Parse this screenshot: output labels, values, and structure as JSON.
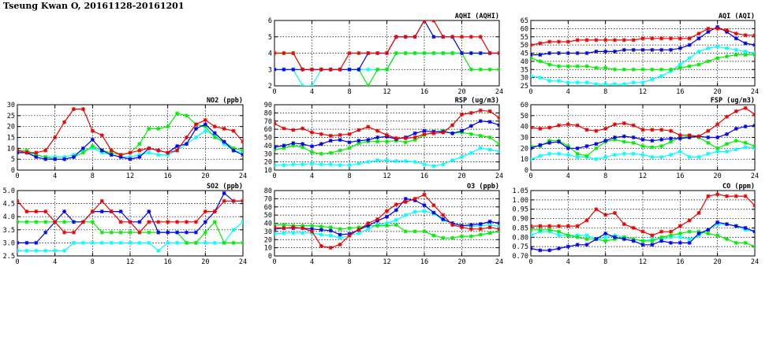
{
  "page_title": "Tseung Kwan O, 20161128-20161201",
  "series_colors": [
    "#00ffff",
    "#00ee00",
    "#0000ee",
    "#ee0000"
  ],
  "chart_data": [
    {
      "id": "aqhi",
      "type": "line",
      "title": "AQHI (AQHI)",
      "xlim": [
        0,
        24
      ],
      "xticks": [
        0,
        4,
        8,
        12,
        16,
        20,
        24
      ],
      "ylim": [
        2,
        6
      ],
      "yticks": [
        2,
        3,
        4,
        5,
        6
      ],
      "grid": true,
      "series": [
        {
          "color": "#00ffff",
          "values": [
            3,
            3,
            3,
            2,
            2,
            3,
            3,
            3,
            3,
            3,
            3,
            3,
            3,
            4,
            4,
            4,
            4,
            4,
            4,
            4,
            4,
            4,
            4,
            4,
            4
          ]
        },
        {
          "color": "#00ee00",
          "values": [
            4,
            4,
            4,
            3,
            3,
            3,
            3,
            3,
            3,
            3,
            2,
            3,
            3,
            4,
            4,
            4,
            4,
            4,
            4,
            4,
            4,
            3,
            3,
            3,
            3
          ]
        },
        {
          "color": "#0000ee",
          "values": [
            3,
            3,
            3,
            3,
            3,
            3,
            3,
            3,
            3,
            3,
            4,
            4,
            4,
            5,
            5,
            5,
            6,
            5,
            5,
            5,
            4,
            4,
            4,
            4,
            4
          ]
        },
        {
          "color": "#ee0000",
          "values": [
            4,
            4,
            4,
            3,
            3,
            3,
            3,
            3,
            4,
            4,
            4,
            4,
            4,
            5,
            5,
            5,
            6,
            6,
            5,
            5,
            5,
            5,
            5,
            4,
            4
          ]
        }
      ]
    },
    {
      "id": "aqi",
      "type": "line",
      "title": "AQI (AQI)",
      "xlim": [
        0,
        24
      ],
      "xticks": [
        0,
        4,
        8,
        12,
        16,
        20,
        24
      ],
      "ylim": [
        25,
        65
      ],
      "yticks": [
        25,
        30,
        35,
        40,
        45,
        50,
        55,
        60,
        65
      ],
      "grid": true,
      "series": [
        {
          "color": "#00ffff",
          "values": [
            31,
            30,
            28,
            28,
            27,
            27,
            27,
            26,
            26,
            26,
            26,
            27,
            27,
            29,
            31,
            34,
            38,
            42,
            46,
            48,
            49,
            48,
            47,
            46,
            45
          ]
        },
        {
          "color": "#00ee00",
          "values": [
            42,
            40,
            38,
            37,
            37,
            37,
            37,
            36,
            36,
            35,
            35,
            35,
            35,
            35,
            35,
            35,
            36,
            37,
            38,
            40,
            42,
            43,
            44,
            44,
            44
          ]
        },
        {
          "color": "#0000ee",
          "values": [
            44,
            44,
            45,
            45,
            45,
            45,
            45,
            46,
            46,
            46,
            47,
            47,
            47,
            47,
            47,
            47,
            48,
            50,
            54,
            58,
            61,
            58,
            54,
            51,
            50
          ]
        },
        {
          "color": "#ee0000",
          "values": [
            50,
            51,
            52,
            52,
            52,
            53,
            53,
            53,
            53,
            53,
            53,
            53,
            54,
            54,
            54,
            54,
            54,
            54,
            57,
            60,
            60,
            59,
            57,
            56,
            56
          ]
        }
      ]
    },
    {
      "id": "no2",
      "type": "line",
      "title": "NO2 (ppb)",
      "xlim": [
        0,
        24
      ],
      "xticks": [
        0,
        4,
        8,
        12,
        16,
        20,
        24
      ],
      "ylim": [
        0,
        30
      ],
      "yticks": [
        0,
        5,
        10,
        15,
        20,
        25,
        30
      ],
      "grid": true,
      "series": [
        {
          "color": "#00ffff",
          "values": [
            8,
            8,
            7,
            6,
            6,
            6,
            7,
            9,
            10,
            8,
            7,
            6,
            6,
            7,
            8,
            7,
            7,
            9,
            12,
            15,
            18,
            16,
            12,
            9,
            8
          ]
        },
        {
          "color": "#00ee00",
          "values": [
            9,
            9,
            7,
            6,
            5,
            5,
            6,
            8,
            11,
            9,
            8,
            7,
            8,
            12,
            19,
            19,
            20,
            26,
            25,
            21,
            20,
            15,
            13,
            10,
            9
          ]
        },
        {
          "color": "#0000ee",
          "values": [
            8,
            8,
            6,
            5,
            5,
            5,
            6,
            10,
            14,
            9,
            7,
            6,
            5,
            6,
            10,
            9,
            8,
            11,
            12,
            19,
            21,
            17,
            13,
            9,
            7
          ]
        },
        {
          "color": "#ee0000",
          "values": [
            9,
            8,
            8,
            9,
            15,
            22,
            28,
            28,
            18,
            16,
            9,
            7,
            8,
            9,
            10,
            9,
            8,
            9,
            15,
            21,
            23,
            20,
            19,
            18,
            13
          ]
        }
      ]
    },
    {
      "id": "rsp",
      "type": "line",
      "title": "RSP (ug/m3)",
      "xlim": [
        0,
        24
      ],
      "xticks": [
        0,
        4,
        8,
        12,
        16,
        20,
        24
      ],
      "ylim": [
        10,
        90
      ],
      "yticks": [
        10,
        20,
        30,
        40,
        50,
        60,
        70,
        80,
        90
      ],
      "grid": true,
      "series": [
        {
          "color": "#00ffff",
          "values": [
            16,
            16,
            17,
            17,
            18,
            17,
            17,
            16,
            16,
            18,
            20,
            22,
            22,
            21,
            21,
            20,
            17,
            15,
            17,
            22,
            26,
            31,
            37,
            35,
            33
          ]
        },
        {
          "color": "#00ee00",
          "values": [
            35,
            37,
            40,
            38,
            32,
            30,
            31,
            34,
            37,
            43,
            45,
            45,
            45,
            46,
            44,
            47,
            53,
            57,
            58,
            55,
            56,
            54,
            52,
            50,
            42
          ]
        },
        {
          "color": "#0000ee",
          "values": [
            38,
            40,
            43,
            42,
            39,
            42,
            46,
            47,
            44,
            46,
            47,
            50,
            51,
            48,
            50,
            55,
            58,
            57,
            57,
            55,
            58,
            64,
            70,
            69,
            65
          ]
        },
        {
          "color": "#ee0000",
          "values": [
            67,
            61,
            59,
            61,
            56,
            54,
            52,
            53,
            54,
            59,
            63,
            58,
            53,
            49,
            49,
            50,
            54,
            55,
            56,
            65,
            78,
            80,
            83,
            82,
            74
          ]
        }
      ]
    },
    {
      "id": "fsp",
      "type": "line",
      "title": "FSP (ug/m3)",
      "xlim": [
        0,
        24
      ],
      "xticks": [
        0,
        4,
        8,
        12,
        16,
        20,
        24
      ],
      "ylim": [
        0,
        60
      ],
      "yticks": [
        0,
        10,
        20,
        30,
        40,
        50,
        60
      ],
      "grid": true,
      "series": [
        {
          "color": "#00ffff",
          "values": [
            10,
            13,
            15,
            15,
            14,
            12,
            12,
            10,
            12,
            14,
            15,
            15,
            14,
            12,
            12,
            14,
            17,
            12,
            12,
            15,
            17,
            17,
            19,
            21,
            20
          ]
        },
        {
          "color": "#00ee00",
          "values": [
            22,
            22,
            27,
            27,
            22,
            15,
            13,
            20,
            26,
            28,
            26,
            25,
            22,
            21,
            22,
            26,
            30,
            31,
            30,
            25,
            20,
            24,
            27,
            25,
            22
          ]
        },
        {
          "color": "#0000ee",
          "values": [
            20,
            23,
            25,
            26,
            20,
            20,
            22,
            24,
            27,
            30,
            31,
            30,
            28,
            27,
            28,
            29,
            29,
            30,
            31,
            30,
            30,
            33,
            38,
            40,
            41
          ]
        },
        {
          "color": "#ee0000",
          "values": [
            39,
            38,
            39,
            41,
            42,
            41,
            37,
            36,
            38,
            42,
            43,
            41,
            37,
            37,
            37,
            36,
            32,
            32,
            31,
            36,
            42,
            49,
            54,
            57,
            51
          ]
        }
      ]
    },
    {
      "id": "so2",
      "type": "line",
      "title": "SO2 (ppb)",
      "xlim": [
        0,
        24
      ],
      "xticks": [
        0,
        4,
        8,
        12,
        16,
        20,
        24
      ],
      "ylim": [
        2.5,
        5
      ],
      "yticks": [
        2.5,
        3.0,
        3.5,
        4.0,
        4.5,
        5.0
      ],
      "grid": true,
      "series": [
        {
          "color": "#00ffff",
          "values": [
            2.7,
            2.7,
            2.7,
            2.7,
            2.7,
            2.7,
            3.0,
            3.0,
            3.0,
            3.0,
            3.0,
            3.0,
            3.0,
            3.0,
            3.0,
            2.7,
            3.0,
            3.0,
            3.0,
            3.0,
            3.0,
            3.0,
            3.0,
            3.5,
            3.8
          ]
        },
        {
          "color": "#00ee00",
          "values": [
            3.8,
            3.8,
            3.8,
            3.8,
            3.8,
            3.8,
            3.8,
            3.8,
            3.8,
            3.4,
            3.4,
            3.4,
            3.4,
            3.4,
            3.4,
            3.4,
            3.4,
            3.4,
            3.0,
            3.0,
            3.4,
            3.8,
            3.0,
            3.0,
            3.0
          ]
        },
        {
          "color": "#0000ee",
          "values": [
            3.0,
            3.0,
            3.0,
            3.4,
            3.8,
            4.2,
            3.8,
            3.8,
            4.2,
            4.2,
            4.2,
            4.2,
            3.8,
            3.8,
            4.2,
            3.4,
            3.4,
            3.4,
            3.4,
            3.4,
            3.8,
            4.2,
            4.9,
            4.6,
            4.6
          ]
        },
        {
          "color": "#ee0000",
          "values": [
            4.6,
            4.2,
            4.2,
            4.2,
            3.8,
            3.4,
            3.4,
            3.8,
            4.2,
            4.6,
            4.2,
            3.8,
            3.8,
            3.4,
            3.8,
            3.8,
            3.8,
            3.8,
            3.8,
            3.8,
            4.2,
            4.2,
            4.6,
            4.6,
            4.6
          ]
        }
      ]
    },
    {
      "id": "o3",
      "type": "line",
      "title": "O3 (ppb)",
      "xlim": [
        0,
        24
      ],
      "xticks": [
        0,
        4,
        8,
        12,
        16,
        20,
        24
      ],
      "ylim": [
        0,
        80
      ],
      "yticks": [
        0,
        10,
        20,
        30,
        40,
        50,
        60,
        70,
        80
      ],
      "grid": true,
      "series": [
        {
          "color": "#00ffff",
          "values": [
            27,
            28,
            28,
            28,
            28,
            26,
            25,
            22,
            25,
            28,
            33,
            38,
            40,
            44,
            50,
            54,
            55,
            52,
            44,
            40,
            37,
            36,
            37,
            38,
            36
          ]
        },
        {
          "color": "#00ee00",
          "values": [
            38,
            38,
            37,
            37,
            37,
            36,
            35,
            33,
            34,
            35,
            37,
            37,
            37,
            38,
            30,
            30,
            30,
            25,
            22,
            22,
            24,
            24,
            26,
            28,
            30
          ]
        },
        {
          "color": "#0000ee",
          "values": [
            33,
            34,
            34,
            34,
            33,
            32,
            31,
            26,
            27,
            32,
            37,
            43,
            48,
            56,
            70,
            68,
            62,
            53,
            45,
            40,
            37,
            38,
            39,
            42,
            40
          ]
        },
        {
          "color": "#ee0000",
          "values": [
            35,
            34,
            35,
            34,
            30,
            12,
            10,
            14,
            25,
            32,
            40,
            45,
            55,
            63,
            66,
            70,
            75,
            62,
            50,
            38,
            35,
            33,
            33,
            35,
            33
          ]
        }
      ]
    },
    {
      "id": "co",
      "type": "line",
      "title": "CO (ppm)",
      "xlim": [
        0,
        24
      ],
      "xticks": [
        0,
        4,
        8,
        12,
        16,
        20,
        24
      ],
      "ylim": [
        0.7,
        1.05
      ],
      "yticks": [
        0.7,
        0.75,
        0.8,
        0.85,
        0.9,
        0.95,
        1.0,
        1.05
      ],
      "grid": true,
      "series": [
        {
          "color": "#00ffff",
          "values": [
            0.81,
            0.83,
            0.83,
            0.81,
            0.81,
            0.81,
            0.81,
            0.79,
            0.8,
            0.81,
            0.8,
            0.79,
            0.78,
            0.79,
            0.79,
            0.8,
            0.8,
            0.79,
            0.81,
            0.84,
            0.87,
            0.87,
            0.86,
            0.84,
            0.83
          ]
        },
        {
          "color": "#00ee00",
          "values": [
            0.84,
            0.84,
            0.84,
            0.83,
            0.81,
            0.8,
            0.79,
            0.79,
            0.78,
            0.79,
            0.8,
            0.79,
            0.78,
            0.78,
            0.8,
            0.81,
            0.82,
            0.83,
            0.83,
            0.82,
            0.81,
            0.79,
            0.77,
            0.77,
            0.75
          ]
        },
        {
          "color": "#0000ee",
          "values": [
            0.74,
            0.73,
            0.73,
            0.74,
            0.75,
            0.76,
            0.76,
            0.79,
            0.82,
            0.8,
            0.79,
            0.78,
            0.76,
            0.76,
            0.78,
            0.77,
            0.77,
            0.77,
            0.82,
            0.84,
            0.88,
            0.87,
            0.86,
            0.85,
            0.83
          ]
        },
        {
          "color": "#ee0000",
          "values": [
            0.86,
            0.86,
            0.86,
            0.86,
            0.86,
            0.86,
            0.89,
            0.95,
            0.92,
            0.93,
            0.87,
            0.85,
            0.83,
            0.81,
            0.83,
            0.83,
            0.86,
            0.89,
            0.93,
            1.02,
            1.03,
            1.02,
            1.02,
            1.02,
            0.97
          ]
        }
      ]
    }
  ]
}
